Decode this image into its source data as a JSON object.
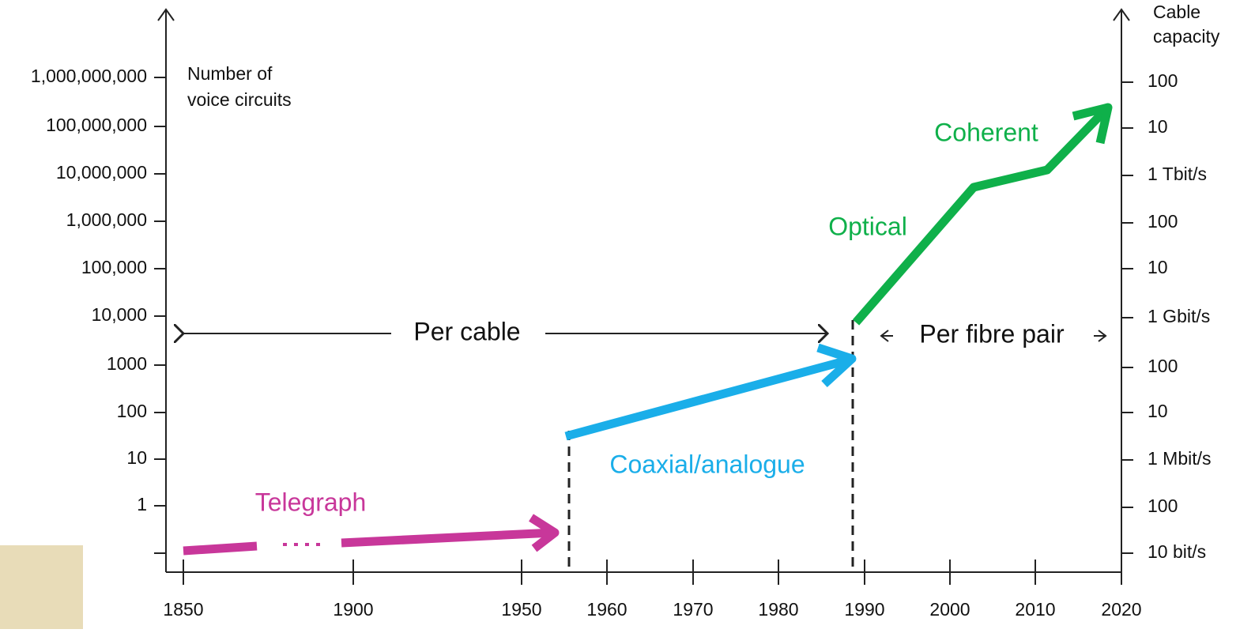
{
  "left_axis": {
    "title": [
      "Number of",
      "voice circuits"
    ],
    "ticks": [
      "1,000,000,000",
      "100,000,000",
      "10,000,000",
      "1,000,000",
      "100,000",
      "10,000",
      "1000",
      "100",
      "10",
      "1"
    ]
  },
  "right_axis": {
    "title": [
      "Cable",
      "capacity"
    ],
    "ticks": [
      "100",
      "10",
      "1 Tbit/s",
      "100",
      "10",
      "1 Gbit/s",
      "100",
      "10",
      "1 Mbit/s",
      "100",
      "10 bit/s"
    ]
  },
  "x_axis": {
    "ticks": [
      "1850",
      "1900",
      "1950",
      "1960",
      "1970",
      "1980",
      "1990",
      "2000",
      "2010",
      "2020"
    ]
  },
  "annotations": {
    "per_cable": "Per cable",
    "per_fibre_pair": "Per fibre pair",
    "telegraph": "Telegraph",
    "coaxial": "Coaxial/analogue",
    "optical": "Optical",
    "coherent": "Coherent"
  }
}
